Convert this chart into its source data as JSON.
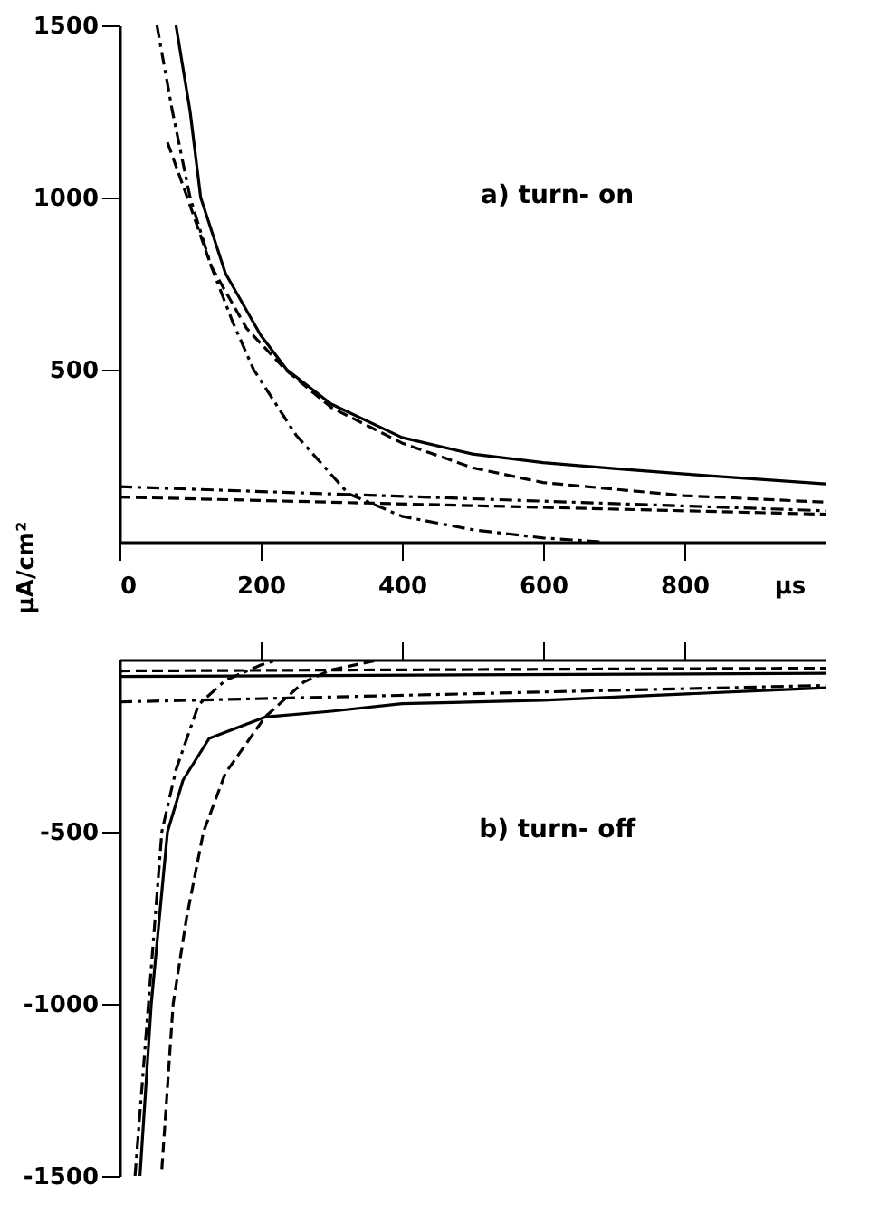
{
  "chart_data": [
    {
      "type": "line",
      "xlabel": "μs",
      "ylabel": "μA/cm²",
      "xlim": [
        0,
        1000
      ],
      "ylim": [
        0,
        1500
      ],
      "xticks": [
        0,
        200,
        400,
        600,
        800
      ],
      "yticks": [
        500,
        1000,
        1500
      ],
      "grid": false,
      "legend": false,
      "annotations": [
        "a) turn- on"
      ],
      "series": [
        {
          "color": "#000000",
          "line_style": "solid",
          "x": [
            80,
            100,
            115,
            150,
            200,
            237,
            300,
            400,
            500,
            600,
            700,
            800,
            1000
          ],
          "values": [
            1500,
            1250,
            1000,
            780,
            600,
            500,
            400,
            303,
            255,
            230,
            213,
            197,
            168
          ]
        },
        {
          "color": "#000000",
          "line_style": "dashed",
          "x": [
            68,
            96,
            130,
            180,
            235,
            300,
            400,
            500,
            600,
            800,
            1000
          ],
          "values": [
            1160,
            1000,
            800,
            620,
            500,
            390,
            287,
            215,
            172,
            134,
            115
          ]
        },
        {
          "color": "#000000",
          "line_style": "dotted",
          "x": [
            53,
            75,
            100,
            130,
            160,
            190,
            250,
            324,
            400,
            500,
            600,
            680
          ],
          "values": [
            1500,
            1250,
            1000,
            800,
            640,
            500,
            310,
            140,
            74,
            35,
            11,
            0
          ]
        },
        {
          "color": "#000000",
          "line_style": "dotted",
          "x": [
            0,
            1000
          ],
          "values": [
            160,
            90
          ]
        },
        {
          "color": "#000000",
          "line_style": "dashed",
          "x": [
            0,
            1000
          ],
          "values": [
            130,
            80
          ]
        }
      ]
    },
    {
      "type": "line",
      "xlim": [
        0,
        1000
      ],
      "ylim": [
        -1500,
        0
      ],
      "xticks": [
        {
          "value": 200,
          "label": null
        },
        {
          "value": 400,
          "label": null
        },
        {
          "value": 600,
          "label": null
        },
        {
          "value": 800,
          "label": null
        }
      ],
      "yticks": [
        -1500,
        -1000,
        -500
      ],
      "tick_labels": "y",
      "grid": false,
      "legend": false,
      "annotations": [
        "b) turn- off"
      ],
      "series": [
        {
          "color": "#000000",
          "line_style": "solid",
          "x": [
            29,
            45,
            68,
            90,
            127,
            206,
            300,
            400,
            600,
            1000
          ],
          "values": [
            -1500,
            -1000,
            -500,
            -350,
            -229,
            -167,
            -150,
            -128,
            -118,
            -82
          ]
        },
        {
          "color": "#000000",
          "line_style": "dashed",
          "x": [
            60,
            76,
            95,
            119,
            150,
            206,
            261,
            300,
            363
          ],
          "values": [
            -1480,
            -1000,
            -750,
            -500,
            -330,
            -167,
            -65,
            -30,
            -3
          ]
        },
        {
          "color": "#000000",
          "line_style": "dotted",
          "x": [
            22,
            41,
            60,
            80,
            112,
            150,
            200,
            225
          ],
          "values": [
            -1500,
            -1000,
            -500,
            -320,
            -131,
            -60,
            -16,
            0
          ]
        },
        {
          "color": "#000000",
          "line_style": "dotted",
          "x": [
            0,
            1000
          ],
          "values": [
            -123,
            -75
          ]
        },
        {
          "color": "#000000",
          "line_style": "dashed",
          "x": [
            0,
            1000
          ],
          "values": [
            -33,
            -25
          ]
        },
        {
          "color": "#000000",
          "line_style": "solid",
          "x": [
            0,
            1000
          ],
          "values": [
            -49,
            -40
          ]
        }
      ]
    }
  ]
}
